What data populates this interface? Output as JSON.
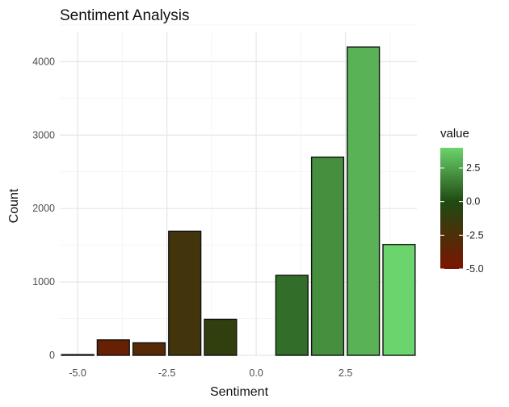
{
  "chart_data": {
    "type": "bar",
    "title": "Sentiment Analysis",
    "xlabel": "Sentiment",
    "ylabel": "Count",
    "x": [
      -5,
      -4,
      -3,
      -2,
      -1,
      0,
      1,
      2,
      3,
      4
    ],
    "values": [
      10,
      210,
      170,
      1690,
      490,
      0,
      1090,
      2700,
      4200,
      1510
    ],
    "xlim": [
      -5.5,
      4.5
    ],
    "ylim": [
      0,
      4400
    ],
    "x_ticks": [
      -5,
      -2.5,
      0,
      2.5
    ],
    "x_tick_labels": [
      "-5.0",
      "-2.5",
      "0.0",
      "2.5"
    ],
    "y_ticks": [
      0,
      1000,
      2000,
      3000,
      4000
    ],
    "y_tick_labels": [
      "0",
      "1000",
      "2000",
      "3000",
      "4000"
    ],
    "grid": true,
    "legend": {
      "title": "value",
      "position": "right",
      "ticks": [
        2.5,
        0,
        -2.5,
        -5
      ],
      "tick_labels": [
        "2.5",
        "0.0",
        "-2.5",
        "-5.0"
      ],
      "range": [
        -5,
        4
      ],
      "colors": {
        "low": "#7a1500",
        "mid": "#1f4a12",
        "high": "#6cd46c"
      }
    }
  }
}
